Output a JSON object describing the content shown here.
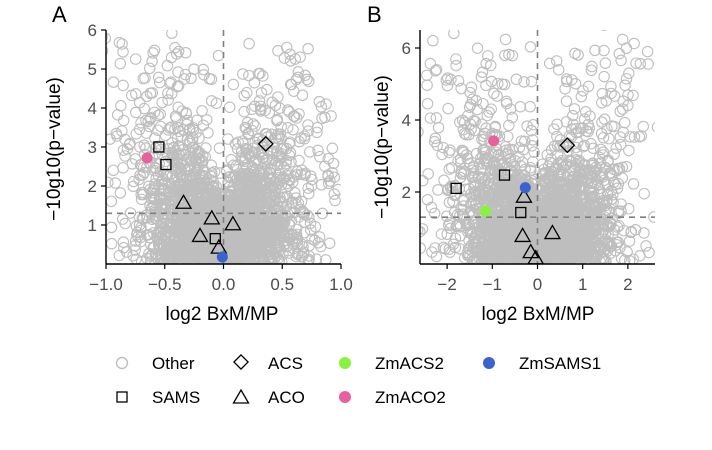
{
  "chart_data": [
    {
      "panel": "A",
      "type": "scatter",
      "title": "",
      "xlabel": "log2 BxM/MP",
      "ylabel": "−10g10(p−value)",
      "xlim": [
        -1.0,
        1.0
      ],
      "ylim": [
        0,
        6
      ],
      "xticks": [
        "−1.0",
        "−0.5",
        "0.0",
        "0.5",
        "1.0"
      ],
      "xtick_values": [
        -1.0,
        -0.5,
        0.0,
        0.5,
        1.0
      ],
      "yticks": [
        "1",
        "2",
        "3",
        "4",
        "5",
        "6"
      ],
      "ytick_values": [
        1,
        2,
        3,
        4,
        5,
        6
      ],
      "vline_x": 0.0,
      "hline_y": 1.3,
      "series": [
        {
          "name": "SAMS",
          "points": [
            [
              -0.55,
              3.0
            ],
            [
              -0.49,
              2.55
            ],
            [
              -0.07,
              0.65
            ]
          ]
        },
        {
          "name": "ACS",
          "points": [
            [
              0.36,
              3.08
            ]
          ]
        },
        {
          "name": "ACO",
          "points": [
            [
              -0.34,
              1.57
            ],
            [
              -0.2,
              0.72
            ],
            [
              -0.1,
              1.17
            ],
            [
              -0.04,
              0.42
            ],
            [
              0.08,
              1.02
            ]
          ]
        },
        {
          "name": "ZmACO2",
          "points": [
            [
              -0.65,
              2.72
            ]
          ]
        },
        {
          "name": "ZmSAMS1",
          "points": [
            [
              -0.01,
              0.18
            ]
          ]
        }
      ]
    },
    {
      "panel": "B",
      "type": "scatter",
      "title": "",
      "xlabel": "log2 BxM/MP",
      "ylabel": "−10g10(p−value)",
      "xlim": [
        -2.6,
        2.6
      ],
      "ylim": [
        0,
        6.5
      ],
      "xticks": [
        "−2",
        "−1",
        "0",
        "1",
        "2"
      ],
      "xtick_values": [
        -2,
        -1,
        0,
        1,
        2
      ],
      "yticks": [
        "2",
        "4",
        "6"
      ],
      "ytick_values": [
        2,
        4,
        6
      ],
      "vline_x": 0.0,
      "hline_y": 1.3,
      "series": [
        {
          "name": "SAMS",
          "points": [
            [
              -1.8,
              2.1
            ],
            [
              -0.73,
              2.47
            ],
            [
              -0.37,
              1.43
            ]
          ]
        },
        {
          "name": "ACS",
          "points": [
            [
              0.66,
              3.3
            ]
          ]
        },
        {
          "name": "ACO",
          "points": [
            [
              -0.3,
              1.87
            ],
            [
              -0.33,
              0.78
            ],
            [
              0.33,
              0.86
            ],
            [
              -0.15,
              0.33
            ],
            [
              -0.04,
              0.16
            ]
          ]
        },
        {
          "name": "ZmACS2",
          "points": [
            [
              -1.15,
              1.47
            ]
          ]
        },
        {
          "name": "ZmACO2",
          "points": [
            [
              -0.97,
              3.42
            ]
          ]
        },
        {
          "name": "ZmSAMS1",
          "points": [
            [
              -0.27,
              2.12
            ]
          ]
        }
      ]
    }
  ],
  "panels": {
    "a_label": "A",
    "b_label": "B"
  },
  "legend": {
    "placement": "bottom",
    "items": [
      {
        "label": "Other",
        "shape": "circle-open",
        "color": "#bebebe"
      },
      {
        "label": "ACS",
        "shape": "diamond-open",
        "color": "#000000"
      },
      {
        "label": "ZmACS2",
        "shape": "circle-filled",
        "color": "#89f23d"
      },
      {
        "label": "ZmSAMS1",
        "shape": "circle-filled",
        "color": "#3b63cc"
      },
      {
        "label": "SAMS",
        "shape": "square-open",
        "color": "#000000"
      },
      {
        "label": "ACO",
        "shape": "triangle-open",
        "color": "#000000"
      },
      {
        "label": "ZmACO2",
        "shape": "circle-filled",
        "color": "#e8609c"
      }
    ]
  },
  "colors": {
    "other": "#bebebe",
    "ZmACS2": "#89f23d",
    "ZmACO2": "#e8609c",
    "ZmSAMS1": "#3b63cc",
    "refline": "#808080"
  }
}
